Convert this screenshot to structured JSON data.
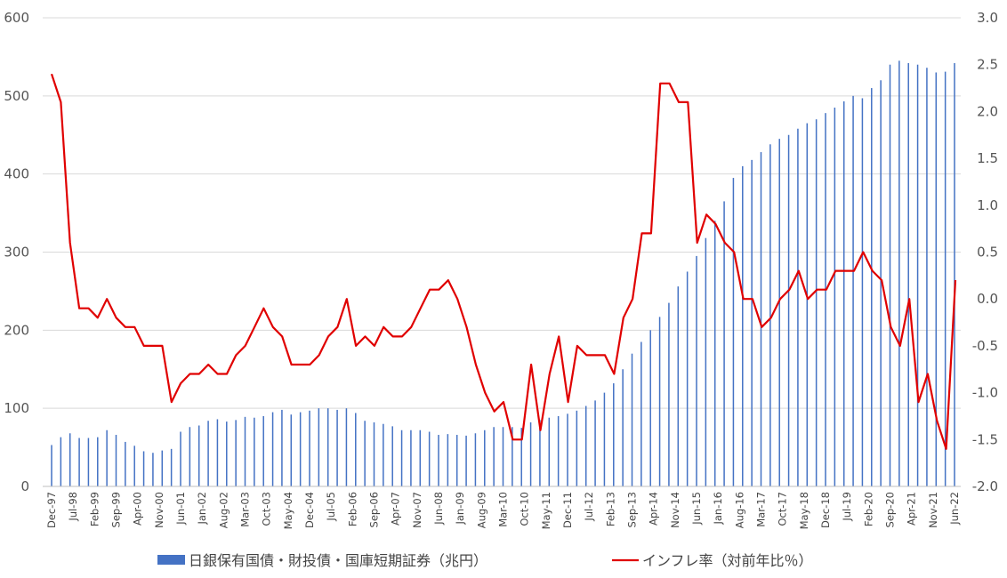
{
  "chart_data": {
    "type": "bar-line-combo",
    "colors": {
      "bars": "#4472c4",
      "line": "#e00000",
      "grid": "#d9d9d9"
    },
    "y_left": {
      "min": 0,
      "max": 600,
      "ticks": [
        0,
        100,
        200,
        300,
        400,
        500,
        600
      ]
    },
    "y_right": {
      "min": -2.0,
      "max": 3.0,
      "ticks": [
        3.0,
        2.5,
        2.0,
        1.5,
        1.0,
        0.5,
        0.0,
        -0.5,
        -1.0,
        -1.5,
        -2.0
      ]
    },
    "x_tick_labels": [
      "Dec-97",
      "Jul-98",
      "Feb-99",
      "Sep-99",
      "Apr-00",
      "Nov-00",
      "Jun-01",
      "Jan-02",
      "Aug-02",
      "Mar-03",
      "Oct-03",
      "May-04",
      "Dec-04",
      "Jul-05",
      "Feb-06",
      "Sep-06",
      "Apr-07",
      "Nov-07",
      "Jun-08",
      "Jan-09",
      "Aug-09",
      "Mar-10",
      "Oct-10",
      "May-11",
      "Dec-11",
      "Jul-12",
      "Feb-13",
      "Sep-13",
      "Apr-14",
      "Nov-14",
      "Jun-15",
      "Jan-16",
      "Aug-16",
      "Mar-17",
      "Oct-17",
      "May-18",
      "Dec-18",
      "Jul-19",
      "Feb-20",
      "Sep-20",
      "Apr-21",
      "Nov-21",
      "Jun-22"
    ],
    "grid": true,
    "legend_position": "bottom",
    "series": [
      {
        "name": "日銀保有国債・財投債・国庫短期証券（兆円）",
        "type": "bar",
        "axis": "left",
        "values": [
          53,
          63,
          68,
          62,
          62,
          63,
          72,
          66,
          57,
          52,
          45,
          43,
          46,
          48,
          70,
          76,
          78,
          84,
          86,
          83,
          85,
          89,
          88,
          90,
          95,
          98,
          92,
          95,
          97,
          100,
          100,
          98,
          100,
          94,
          84,
          82,
          80,
          77,
          72,
          72,
          72,
          70,
          66,
          67,
          66,
          65,
          68,
          72,
          76,
          76,
          76,
          75,
          82,
          85,
          88,
          90,
          93,
          97,
          103,
          110,
          120,
          132,
          150,
          170,
          185,
          200,
          217,
          235,
          256,
          275,
          295,
          318,
          340,
          365,
          395,
          410,
          418,
          428,
          438,
          445,
          450,
          458,
          465,
          470,
          478,
          485,
          493,
          500,
          497,
          510,
          520,
          540,
          545,
          542,
          540,
          536,
          530,
          531,
          542
        ]
      },
      {
        "name": "インフレ率（対前年比％）",
        "type": "line",
        "axis": "right",
        "values": [
          2.4,
          2.1,
          0.6,
          -0.1,
          -0.1,
          -0.2,
          0.0,
          -0.2,
          -0.3,
          -0.3,
          -0.5,
          -0.5,
          -0.5,
          -1.1,
          -0.9,
          -0.8,
          -0.8,
          -0.7,
          -0.8,
          -0.8,
          -0.6,
          -0.5,
          -0.3,
          -0.1,
          -0.3,
          -0.4,
          -0.7,
          -0.7,
          -0.7,
          -0.6,
          -0.4,
          -0.3,
          0.0,
          -0.5,
          -0.4,
          -0.5,
          -0.3,
          -0.4,
          -0.4,
          -0.3,
          -0.1,
          0.1,
          0.1,
          0.2,
          0.0,
          -0.3,
          -0.7,
          -1.0,
          -1.2,
          -1.1,
          -1.5,
          -1.5,
          -0.7,
          -1.4,
          -0.8,
          -0.4,
          -1.1,
          -0.5,
          -0.6,
          -0.6,
          -0.6,
          -0.8,
          -0.2,
          0.0,
          0.7,
          0.7,
          2.3,
          2.3,
          2.1,
          2.1,
          0.6,
          0.9,
          0.8,
          0.6,
          0.5,
          0.0,
          0.0,
          -0.3,
          -0.2,
          0.0,
          0.1,
          0.3,
          0.0,
          0.1,
          0.1,
          0.3,
          0.3,
          0.3,
          0.5,
          0.3,
          0.2,
          -0.3,
          -0.5,
          0.0,
          -1.1,
          -0.8,
          -1.3,
          -1.6,
          0.2
        ]
      }
    ]
  }
}
